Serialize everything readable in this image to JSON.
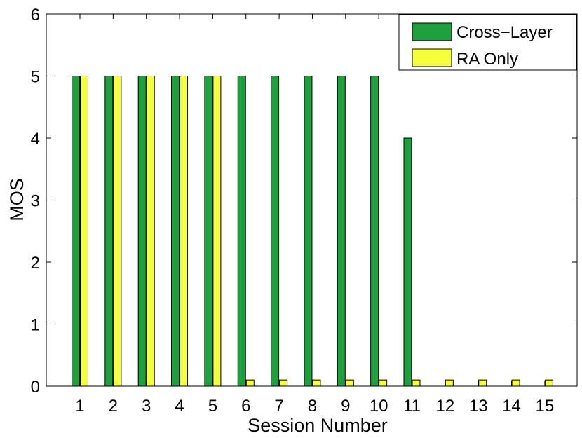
{
  "chart_data": {
    "type": "bar",
    "title": "",
    "xlabel": "Session Number",
    "ylabel": "MOS",
    "ylim": [
      0,
      6
    ],
    "yticks": [
      "0",
      "1",
      "2",
      "3",
      "4",
      "5",
      "6"
    ],
    "categories": [
      "1",
      "2",
      "3",
      "4",
      "5",
      "6",
      "7",
      "8",
      "9",
      "10",
      "11",
      "12",
      "13",
      "14",
      "15"
    ],
    "series": [
      {
        "name": "Cross−Layer",
        "color": "#1fa03f",
        "values": [
          5,
          5,
          5,
          5,
          5,
          5,
          5,
          5,
          5,
          5,
          4,
          0,
          0,
          0,
          0
        ]
      },
      {
        "name": "RA Only",
        "color": "#f5ff3c",
        "values": [
          5,
          5,
          5,
          5,
          5,
          0.1,
          0.1,
          0.1,
          0.1,
          0.1,
          0.1,
          0.1,
          0.1,
          0.1,
          0.1
        ]
      }
    ],
    "legend_position": "top-right",
    "grid": false
  }
}
